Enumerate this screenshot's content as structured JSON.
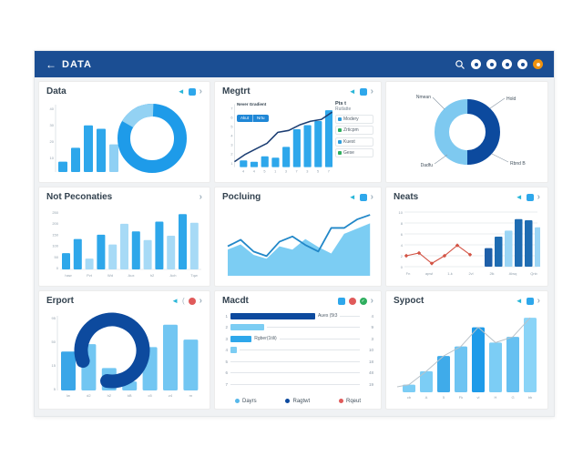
{
  "colors": {
    "header_bg": "#1b4e93",
    "accent_blue": "#1e9be9",
    "medium_blue": "#2ea7eb",
    "light_blue": "#7ccdf3",
    "pale_blue": "#a7daf6",
    "navy": "#0d4a9e",
    "red": "#e05a5a",
    "green": "#2eae5e",
    "orange": "#f0920e",
    "teal": "#29b6d8"
  },
  "glyphs": {
    "back": "◄",
    "chevron": "›",
    "paren": "(",
    "check": "✓"
  },
  "header": {
    "back_glyph": "←",
    "title": "DATA"
  },
  "panels": {
    "data": {
      "title": "Data",
      "chart": {
        "type": "bar+donut",
        "bar_values": [
          6,
          14,
          27,
          25,
          16
        ],
        "bar_colors": [
          "#2ea7eb",
          "#2ea7eb",
          "#2ea7eb",
          "#2ea7eb",
          "#8fd0f4"
        ],
        "yticks": [
          "40",
          "30",
          "20",
          "10"
        ],
        "donut": {
          "ring_color": "#1e9be9",
          "segment_color": "#93d2f3",
          "segment_start_deg": -150,
          "segment_sweep_deg": 62
        }
      }
    },
    "megtrt": {
      "title": "Megtrt",
      "inner_legend": {
        "caption": "Never Gradient",
        "buttons": [
          "Akut",
          "Nrtu"
        ]
      },
      "side_legend": {
        "heading": "Pts t",
        "subheading": "Rutlatte",
        "items": [
          {
            "label": "Modery",
            "color": "#2d9cdb"
          },
          {
            "label": "Zrticpm",
            "color": "#2eae5e"
          },
          {
            "label": "Kuest",
            "color": "#2d9cdb"
          },
          {
            "label": "Gese",
            "color": "#2eae5e"
          }
        ]
      },
      "chart": {
        "type": "bar+line",
        "bar_values": [
          5,
          4,
          8,
          7,
          15,
          28,
          31,
          34,
          42
        ],
        "bar_color": "#2ea7eb",
        "line_values": [
          6,
          14,
          20,
          26,
          38,
          40,
          46,
          50,
          52,
          60
        ],
        "line_color": "#1c3e73",
        "yticks": [
          "7",
          "6",
          "5",
          "4",
          "3",
          "2",
          "1"
        ],
        "xticks": [
          "4",
          "4",
          "5",
          "1",
          "3",
          "7",
          "3",
          "5",
          "7"
        ]
      }
    },
    "donut": {
      "chart": {
        "type": "donut",
        "slices": [
          {
            "label": "Nmean",
            "value": 50,
            "color": "#7ec9f0"
          },
          {
            "label": "Hold",
            "value": 50,
            "color": "#0c4a9e"
          }
        ],
        "callouts": [
          {
            "text": "Nmean",
            "pos": "top-left"
          },
          {
            "text": "Hold",
            "pos": "top-right"
          },
          {
            "text": "Rbnd B",
            "pos": "bottom-right"
          },
          {
            "text": "Dadfu",
            "pos": "bottom-left"
          }
        ]
      }
    },
    "not_peconaties": {
      "title": "Not Peconaties",
      "chart": {
        "type": "bar",
        "values": [
          75,
          140,
          50,
          160,
          115,
          210,
          175,
          135,
          220,
          155,
          255,
          215
        ],
        "color_pattern": [
          "m",
          "m",
          "l",
          "m",
          "l",
          "l",
          "m",
          "l",
          "m",
          "l",
          "m",
          "l"
        ],
        "color_m": "#2ea7ea",
        "color_l": "#a7daf6",
        "yticks": [
          "250",
          "200",
          "150",
          "100",
          "50",
          "0"
        ],
        "xticks": [
          "haw",
          "Pvt",
          "Wd",
          "Aux",
          "h2",
          "Ach",
          "Tqw"
        ]
      }
    },
    "pocluing": {
      "title": "Pocluing",
      "chart": {
        "type": "area+line",
        "area_values": [
          40,
          48,
          32,
          26,
          45,
          40,
          56,
          44,
          34,
          64,
          72,
          80
        ],
        "line_values": [
          45,
          55,
          37,
          30,
          52,
          60,
          47,
          37,
          73,
          73,
          86,
          93
        ],
        "area_color": "#7ccdf3",
        "line_color": "#2187c8"
      }
    },
    "neats": {
      "title": "Neats",
      "chart": {
        "type": "line+bar",
        "line_values": [
          2,
          2.5,
          0.6,
          2,
          3.9,
          2.2
        ],
        "line_color": "#d35445",
        "bar_values": [
          3.4,
          5.5,
          6.6,
          8.7,
          8.5,
          7.2
        ],
        "bar_colors": [
          "#1e5fa8",
          "#1e6cb2",
          "#9bd5f5",
          "#1e6cb2",
          "#1e6cb2",
          "#9bd5f5"
        ],
        "yticks": [
          "10",
          "8",
          "6",
          "4",
          "2",
          "0"
        ],
        "xticks": [
          "Fn",
          "apwl",
          "1-k",
          "2vl",
          "2lk",
          "Alwq",
          "Qnb"
        ]
      }
    },
    "erport": {
      "title": "Erport",
      "chart": {
        "type": "bar+ring",
        "values": [
          52,
          62,
          30,
          12,
          58,
          88,
          68
        ],
        "bar_color": "#72c6f2",
        "first_bar_color": "#3aa6e8",
        "ring_color": "#0d4a9e",
        "yticks": [
          "95",
          "50",
          "15",
          "5"
        ],
        "xticks": [
          "lw",
          "d2",
          "h2",
          "kB",
          "c5",
          "z4",
          "rn"
        ]
      }
    },
    "macdt": {
      "title": "Macdt",
      "rows": [
        {
          "num": "1",
          "width": 56,
          "color": "#0d4a9e",
          "label": "Aues (5t3",
          "value": "4"
        },
        {
          "num": "2",
          "width": 22,
          "color": "#7ccdf3",
          "label": "",
          "value": "9"
        },
        {
          "num": "3",
          "width": 14,
          "color": "#2ea7eb",
          "label": "Rgber(1tili)",
          "value": "3"
        },
        {
          "num": "4",
          "width": 4,
          "color": "#7ccdf3",
          "label": "",
          "value": "10"
        },
        {
          "num": "5",
          "width": 0,
          "color": "",
          "label": "",
          "value": "18"
        },
        {
          "num": "6",
          "width": 0,
          "color": "",
          "label": "",
          "value": "48"
        },
        {
          "num": "7",
          "width": 0,
          "color": "",
          "label": "",
          "value": "19"
        }
      ],
      "legend": [
        {
          "label": "Dayrs",
          "color": "#57b8ea"
        },
        {
          "label": "Ragtwt",
          "color": "#0d4a9e"
        },
        {
          "label": "Rqeut",
          "color": "#e05a5a"
        }
      ]
    },
    "sypoct": {
      "title": "Sypoct",
      "chart": {
        "type": "bar+topline",
        "values": [
          8,
          22,
          38,
          48,
          68,
          52,
          58,
          78
        ],
        "colors": [
          "#7ccdf5",
          "#7ccdf5",
          "#3fabea",
          "#6ec4f2",
          "#1e9be9",
          "#7ccdf5",
          "#66c0f1",
          "#8ad4f7"
        ],
        "line_color": "#b9c2c9",
        "xticks": [
          "cb",
          "A",
          "5",
          "Fk",
          "vl",
          "H",
          "G",
          "bb"
        ]
      }
    }
  }
}
